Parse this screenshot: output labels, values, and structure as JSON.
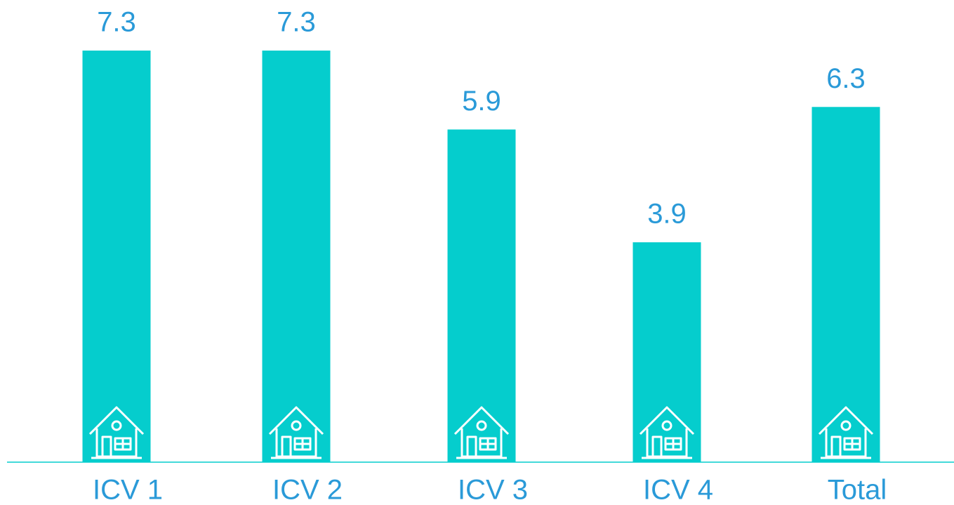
{
  "chart_data": {
    "type": "bar",
    "categories": [
      "ICV 1",
      "ICV 2",
      "ICV 3",
      "ICV 4",
      "Total"
    ],
    "values": [
      7.3,
      7.3,
      5.9,
      3.9,
      6.3
    ],
    "color": "#05cdcd"
  }
}
